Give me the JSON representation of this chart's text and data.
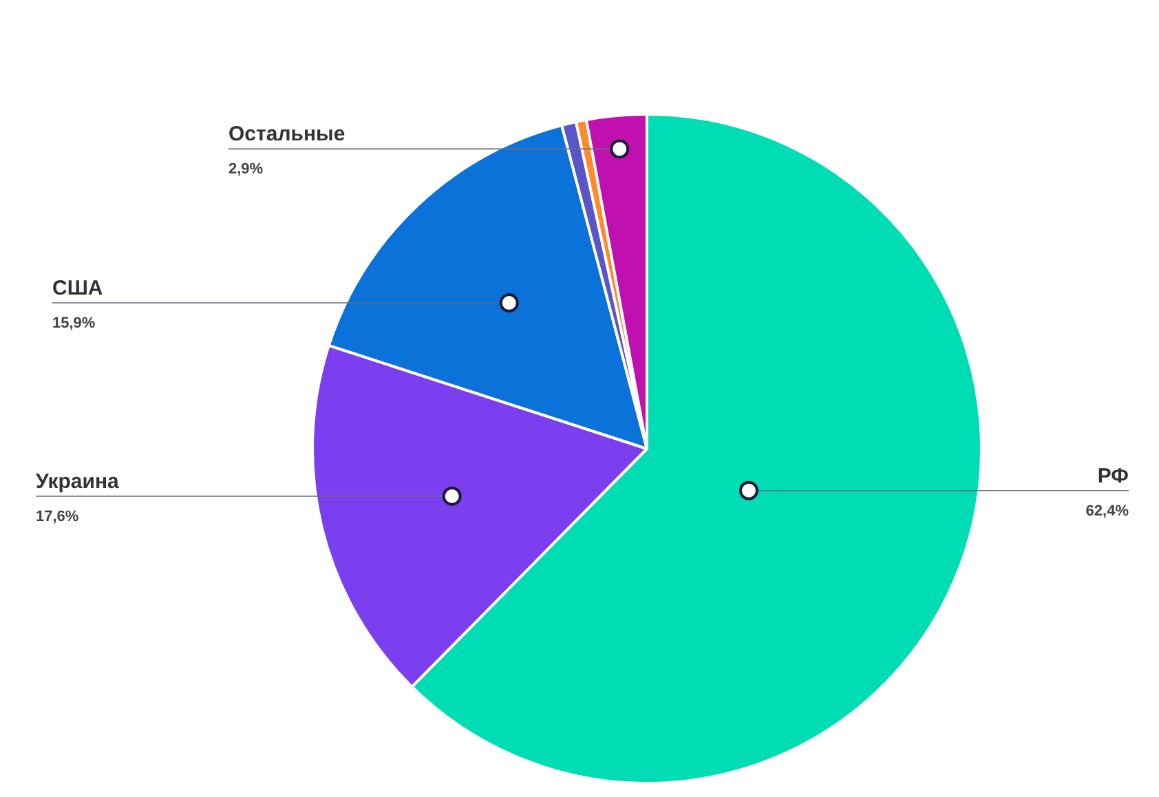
{
  "chart_data": {
    "type": "pie",
    "categories": [
      "РФ",
      "Украина",
      "США",
      null,
      null,
      "Остальные"
    ],
    "values": [
      62.4,
      17.6,
      15.9,
      0.7,
      0.5,
      2.9
    ],
    "value_labels": [
      "62,4%",
      "17,6%",
      "15,9%",
      null,
      null,
      "2,9%"
    ],
    "colors": [
      "#00dcb4",
      "#7b3ff0",
      "#0a72d8",
      "#5a55c8",
      "#ff8a2a",
      "#c010b0"
    ]
  }
}
